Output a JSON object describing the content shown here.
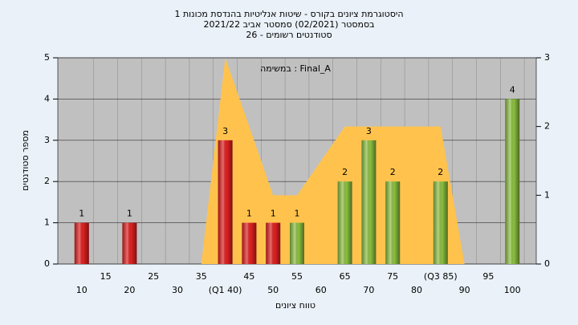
{
  "chart_data": {
    "type": "bar",
    "title_lines": [
      "היסטוגרמת ציונים בקורס - שיטות אנליטיות בהנדסת מכונות 1",
      "בסמסטר  (02/2021)  סמסטר אביב 2021/22",
      "סטודנטים רשומים - 26"
    ],
    "annotation": "במשימה : Final_A",
    "x_label": "טווח ציונים",
    "y_label": "מספר סטודנטים",
    "x": [
      10,
      15,
      20,
      25,
      30,
      35,
      40,
      45,
      50,
      55,
      60,
      65,
      70,
      75,
      80,
      85,
      90,
      95,
      100
    ],
    "values": [
      1,
      0,
      1,
      0,
      0,
      0,
      3,
      1,
      1,
      1,
      0,
      2,
      3,
      2,
      0,
      2,
      0,
      0,
      4
    ],
    "colors": [
      "#e02020",
      "#e02020",
      "#e02020",
      "#e02020",
      "#e02020",
      "#e02020",
      "#e02020",
      "#e02020",
      "#e02020",
      "#8cc040",
      "#8cc040",
      "#8cc040",
      "#8cc040",
      "#8cc040",
      "#8cc040",
      "#8cc040",
      "#8cc040",
      "#8cc040",
      "#8cc040"
    ],
    "xlim": [
      5,
      105
    ],
    "xticks": [
      10,
      15,
      20,
      25,
      30,
      35,
      {
        "value": 40,
        "label": "(Q1 40)"
      },
      45,
      50,
      55,
      60,
      65,
      70,
      75,
      80,
      {
        "value": 85,
        "label": "(Q3 85)"
      },
      90,
      95,
      100
    ],
    "ylim": [
      0,
      5
    ],
    "yticks": [
      0,
      1,
      2,
      3,
      4,
      5
    ],
    "y2lim": [
      0,
      3
    ],
    "y2ticks": [
      0,
      1,
      2,
      3
    ],
    "overlay": {
      "type": "area",
      "axis": "y2",
      "color": "#ffc34d",
      "x": [
        35,
        40,
        50,
        55,
        65,
        85,
        90
      ],
      "values": [
        0,
        3,
        1,
        1,
        2,
        2,
        0
      ]
    },
    "grid": true
  }
}
